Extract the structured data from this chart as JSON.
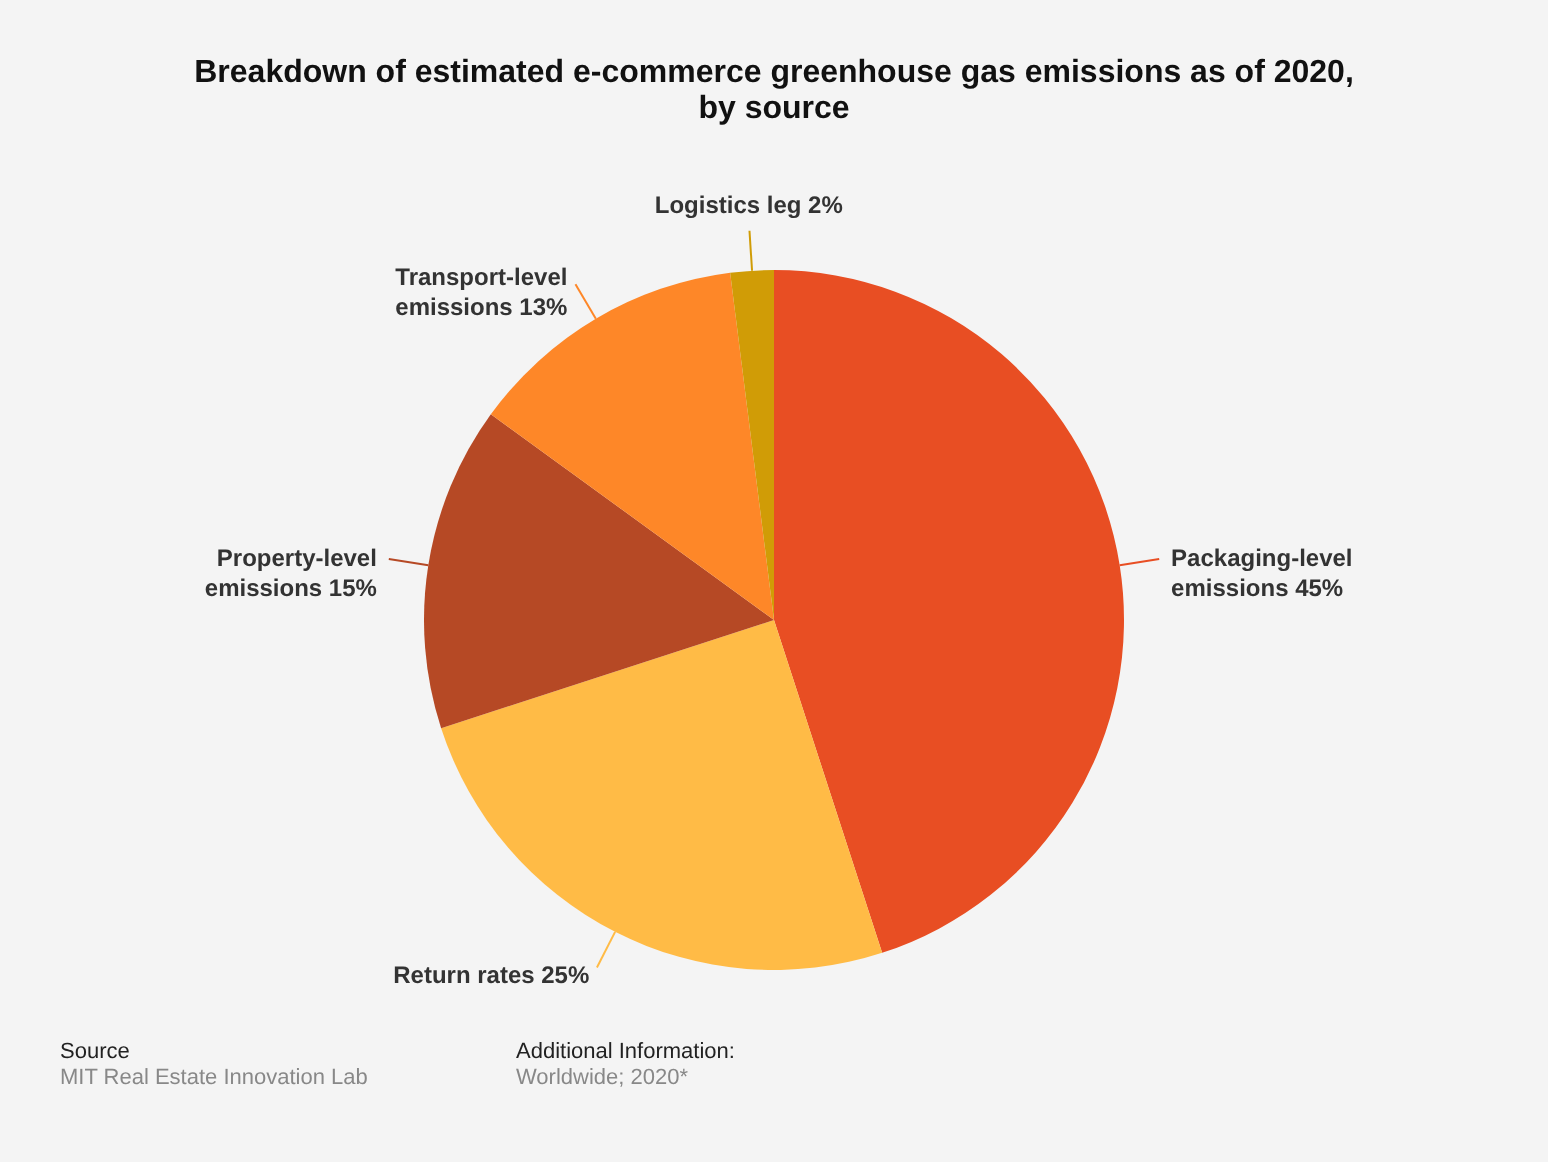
{
  "chart_data": {
    "type": "pie",
    "title": "Breakdown of estimated e-commerce greenhouse gas emissions as of 2020, by source",
    "categories": [
      "Packaging-level emissions",
      "Return rates",
      "Property-level emissions",
      "Transport-level emissions",
      "Logistics leg"
    ],
    "values": [
      45,
      25,
      15,
      13,
      2
    ],
    "value_labels": [
      "45%",
      "25%",
      "15%",
      "13%",
      "2%"
    ],
    "colors": [
      "#e84e23",
      "#ffbb46",
      "#b64925",
      "#fe8728",
      "#d09c06"
    ],
    "annotations": [
      "Source",
      "MIT Real Estate Innovation Lab",
      "Additional Information:",
      "Worldwide; 2020*"
    ]
  }
}
